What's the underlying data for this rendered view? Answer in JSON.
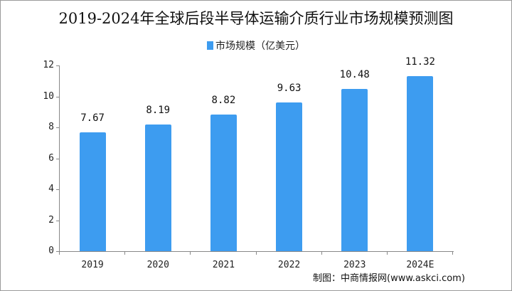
{
  "chart_data": {
    "type": "bar",
    "title": "2019-2024年全球后段半导体运输介质行业市场规模预测图",
    "legend": [
      "市场规模（亿美元）"
    ],
    "legend_position": "top",
    "categories": [
      "2019",
      "2020",
      "2021",
      "2022",
      "2023",
      "2024E"
    ],
    "series": [
      {
        "name": "市场规模（亿美元）",
        "values": [
          7.67,
          8.19,
          8.82,
          9.63,
          10.48,
          11.32
        ],
        "color": "#3d9cf0"
      }
    ],
    "value_labels": [
      "7.67",
      "8.19",
      "8.82",
      "9.63",
      "10.48",
      "11.32"
    ],
    "xlabel": "",
    "ylabel": "",
    "ylim": [
      0,
      12
    ],
    "yticks": [
      "0",
      "2",
      "4",
      "6",
      "8",
      "10",
      "12"
    ],
    "grid": false,
    "source": "制图：中商情报网(www.askci.com)"
  }
}
